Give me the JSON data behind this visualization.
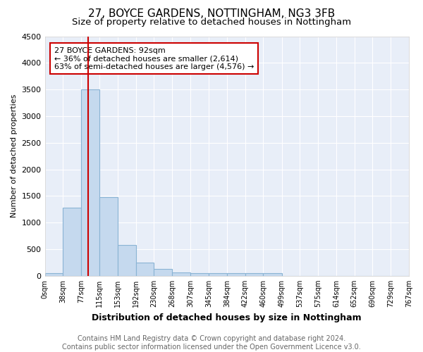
{
  "title": "27, BOYCE GARDENS, NOTTINGHAM, NG3 3FB",
  "subtitle": "Size of property relative to detached houses in Nottingham",
  "xlabel": "Distribution of detached houses by size in Nottingham",
  "ylabel": "Number of detached properties",
  "footer_line1": "Contains HM Land Registry data © Crown copyright and database right 2024.",
  "footer_line2": "Contains public sector information licensed under the Open Government Licence v3.0.",
  "bar_edges": [
    0,
    38,
    77,
    115,
    153,
    192,
    230,
    268,
    307,
    345,
    384,
    422,
    460,
    499,
    537,
    575,
    614,
    652,
    690,
    729,
    767
  ],
  "bar_values": [
    50,
    1280,
    3500,
    1480,
    580,
    250,
    130,
    60,
    45,
    45,
    45,
    50,
    45,
    0,
    0,
    0,
    0,
    0,
    0,
    0
  ],
  "bar_color": "#c5d9ee",
  "bar_edgecolor": "#8ab4d4",
  "vline_x": 92,
  "vline_color": "#cc0000",
  "annotation_text": "27 BOYCE GARDENS: 92sqm\n← 36% of detached houses are smaller (2,614)\n63% of semi-detached houses are larger (4,576) →",
  "annotation_box_edgecolor": "#cc0000",
  "annotation_box_facecolor": "#ffffff",
  "ylim": [
    0,
    4500
  ],
  "yticks": [
    0,
    500,
    1000,
    1500,
    2000,
    2500,
    3000,
    3500,
    4000,
    4500
  ],
  "xtick_labels": [
    "0sqm",
    "38sqm",
    "77sqm",
    "115sqm",
    "153sqm",
    "192sqm",
    "230sqm",
    "268sqm",
    "307sqm",
    "345sqm",
    "384sqm",
    "422sqm",
    "460sqm",
    "499sqm",
    "537sqm",
    "575sqm",
    "614sqm",
    "652sqm",
    "690sqm",
    "729sqm",
    "767sqm"
  ],
  "background_color": "#ffffff",
  "plot_bg_color": "#e8eef8",
  "grid_color": "#ffffff",
  "title_fontsize": 11,
  "subtitle_fontsize": 9.5,
  "xlabel_fontsize": 9,
  "ylabel_fontsize": 8,
  "footer_fontsize": 7,
  "annotation_fontsize": 8
}
